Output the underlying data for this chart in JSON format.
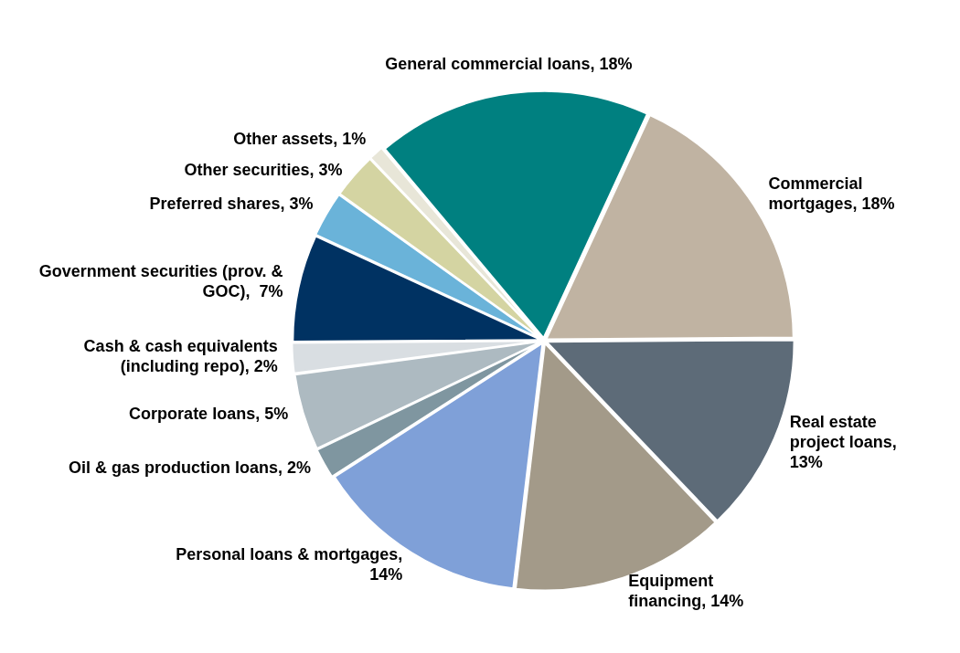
{
  "chart_data": {
    "type": "pie",
    "categories": [
      "General commercial loans, 18%",
      "Commercial mortgages, 18%",
      "Real estate project loans, 13%",
      "Equipment financing, 14%",
      "Personal loans & mortgages, 14%",
      "Oil & gas production loans, 2%",
      "Corporate loans, 5%",
      "Cash & cash equivalents (including repo), 2%",
      "Government securities (prov. & GOC),  7%",
      "Preferred shares, 3%",
      "Other securities, 3%",
      "Other assets, 1%"
    ],
    "values": [
      18,
      18,
      13,
      14,
      14,
      2,
      5,
      2,
      7,
      3,
      3,
      1
    ],
    "colors": [
      "#008080",
      "#c0b3a2",
      "#5d6b78",
      "#a39a89",
      "#7fa0d8",
      "#7f96a0",
      "#adbac1",
      "#d9dee2",
      "#003262",
      "#6ab3d9",
      "#d4d4a2",
      "#e8e6d8"
    ]
  }
}
